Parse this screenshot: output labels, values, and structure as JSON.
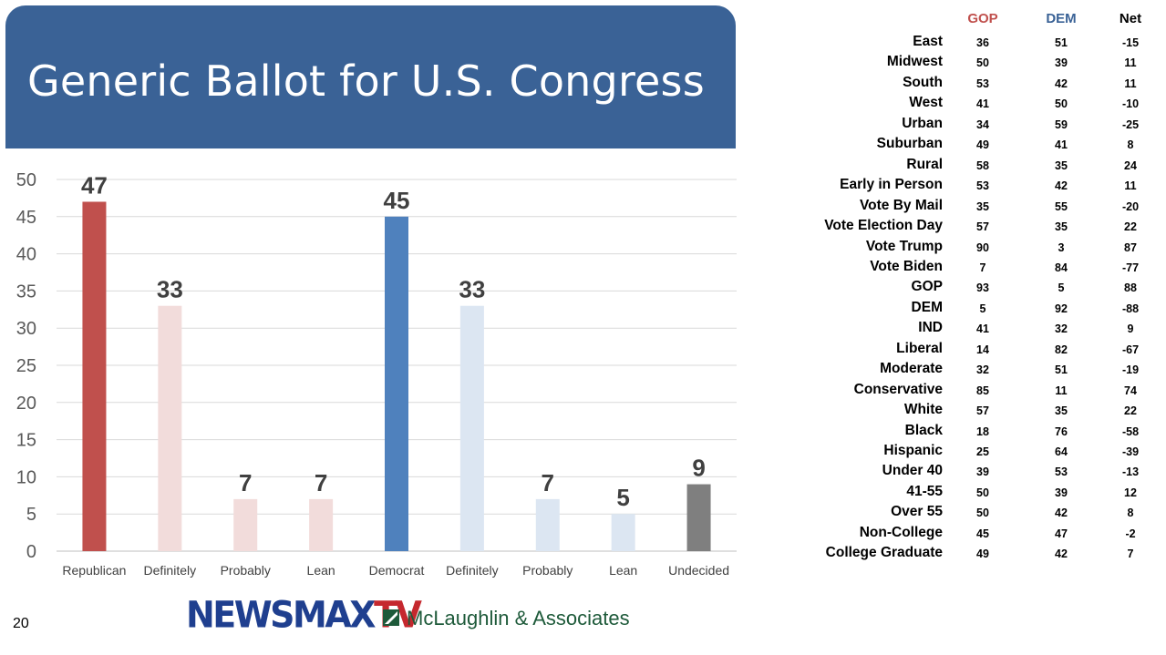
{
  "slide": {
    "title": "Generic Ballot for U.S. Congress",
    "page_number": "20"
  },
  "logos": {
    "newsmax_main": "NEWSMAX",
    "newsmax_tv": "TV",
    "partner": "McLaughlin & Associates"
  },
  "colors": {
    "banner": "#3a6296",
    "republican": "#c0504d",
    "republican_light": "#f2dcdb",
    "democrat": "#4f81bd",
    "democrat_light": "#dce6f2",
    "undecided": "#7f7f7f",
    "gop_header": "#c0504d",
    "dem_header": "#3a6296"
  },
  "chart_data": {
    "type": "bar",
    "categories": [
      "Republican",
      "Definitely",
      "Probably",
      "Lean",
      "Democrat",
      "Definitely",
      "Probably",
      "Lean",
      "Undecided"
    ],
    "values": [
      47,
      33,
      7,
      7,
      45,
      33,
      7,
      5,
      9
    ],
    "bar_colors": [
      "#c0504d",
      "#f2dcdb",
      "#f2dcdb",
      "#f2dcdb",
      "#4f81bd",
      "#dce6f2",
      "#dce6f2",
      "#dce6f2",
      "#7f7f7f"
    ],
    "ylim": [
      0,
      50
    ],
    "yticks": [
      0,
      5,
      10,
      15,
      20,
      25,
      30,
      35,
      40,
      45,
      50
    ],
    "grid": true,
    "data_labels": true
  },
  "table": {
    "headers": {
      "gop": "GOP",
      "dem": "DEM",
      "net": "Net"
    },
    "rows": [
      {
        "label": "East",
        "gop": "36",
        "dem": "51",
        "net": "-15"
      },
      {
        "label": "Midwest",
        "gop": "50",
        "dem": "39",
        "net": "11"
      },
      {
        "label": "South",
        "gop": "53",
        "dem": "42",
        "net": "11"
      },
      {
        "label": "West",
        "gop": "41",
        "dem": "50",
        "net": "-10"
      },
      {
        "label": "Urban",
        "gop": "34",
        "dem": "59",
        "net": "-25"
      },
      {
        "label": "Suburban",
        "gop": "49",
        "dem": "41",
        "net": "8"
      },
      {
        "label": "Rural",
        "gop": "58",
        "dem": "35",
        "net": "24"
      },
      {
        "label": "Early in Person",
        "gop": "53",
        "dem": "42",
        "net": "11"
      },
      {
        "label": "Vote By Mail",
        "gop": "35",
        "dem": "55",
        "net": "-20"
      },
      {
        "label": "Vote Election Day",
        "gop": "57",
        "dem": "35",
        "net": "22"
      },
      {
        "label": "Vote Trump",
        "gop": "90",
        "dem": "3",
        "net": "87"
      },
      {
        "label": "Vote Biden",
        "gop": "7",
        "dem": "84",
        "net": "-77"
      },
      {
        "label": "GOP",
        "gop": "93",
        "dem": "5",
        "net": "88"
      },
      {
        "label": "DEM",
        "gop": "5",
        "dem": "92",
        "net": "-88"
      },
      {
        "label": "IND",
        "gop": "41",
        "dem": "32",
        "net": "9"
      },
      {
        "label": "Liberal",
        "gop": "14",
        "dem": "82",
        "net": "-67"
      },
      {
        "label": "Moderate",
        "gop": "32",
        "dem": "51",
        "net": "-19"
      },
      {
        "label": "Conservative",
        "gop": "85",
        "dem": "11",
        "net": "74"
      },
      {
        "label": "White",
        "gop": "57",
        "dem": "35",
        "net": "22"
      },
      {
        "label": "Black",
        "gop": "18",
        "dem": "76",
        "net": "-58"
      },
      {
        "label": "Hispanic",
        "gop": "25",
        "dem": "64",
        "net": "-39"
      },
      {
        "label": "Under 40",
        "gop": "39",
        "dem": "53",
        "net": "-13"
      },
      {
        "label": "41-55",
        "gop": "50",
        "dem": "39",
        "net": "12"
      },
      {
        "label": "Over 55",
        "gop": "50",
        "dem": "42",
        "net": "8"
      },
      {
        "label": "Non-College",
        "gop": "45",
        "dem": "47",
        "net": "-2"
      },
      {
        "label": "College Graduate",
        "gop": "49",
        "dem": "42",
        "net": "7"
      }
    ]
  }
}
